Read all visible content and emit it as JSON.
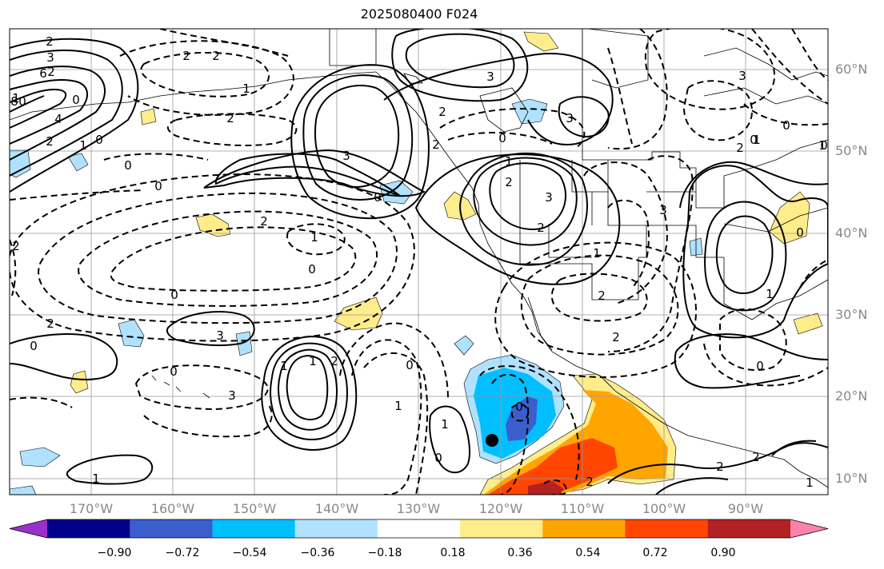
{
  "title": "2025080400 F024",
  "lat_labels": [
    "60°N",
    "50°N",
    "40°N",
    "30°N",
    "20°N",
    "10°N"
  ],
  "lon_labels": [
    "170°W",
    "160°W",
    "150°W",
    "140°W",
    "130°W",
    "120°W",
    "110°W",
    "100°W",
    "90°W"
  ],
  "colorbar": {
    "colors": [
      "#9932cc",
      "#00008b",
      "#3a5fcd",
      "#00bfff",
      "#b0e2ff",
      "#ffffff",
      "#ffec8b",
      "#ffa500",
      "#ff4500",
      "#b22222",
      "#ff82ab"
    ],
    "tick_labels": [
      "−0.90",
      "−0.72",
      "−0.54",
      "−0.36",
      "−0.18",
      "0.18",
      "0.36",
      "0.54",
      "0.72",
      "0.90"
    ]
  },
  "contour_labels": [
    "2",
    "3",
    "6",
    "8",
    "4",
    "2",
    "1",
    "0",
    "0",
    "0",
    "2",
    "2",
    "1",
    "2",
    "3",
    "0",
    "3",
    "2",
    "0",
    "2",
    "3",
    "1",
    "2",
    "3",
    "2",
    "1",
    "2",
    "3",
    "2",
    "1",
    "0",
    "2",
    "3",
    "0",
    "1",
    "0",
    "1",
    "0",
    "2",
    "2",
    "1",
    "2",
    "0",
    "1",
    "0",
    "0",
    "1",
    "1",
    "0",
    "0",
    "2",
    "2",
    "1",
    "1",
    "2",
    "3",
    "0",
    "3",
    "1",
    "2",
    "0",
    "0",
    "1",
    "2",
    "0",
    "0"
  ],
  "marker": "station-dot"
}
